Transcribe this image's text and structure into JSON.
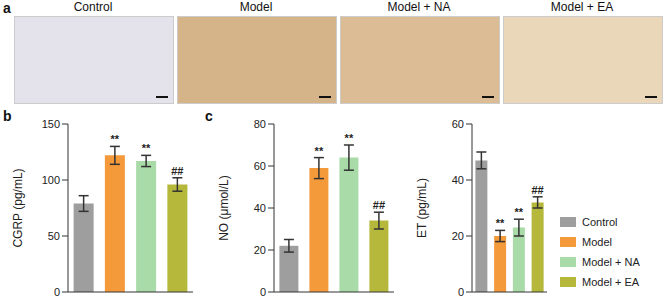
{
  "figure": {
    "panel_labels": [
      "a",
      "b",
      "c"
    ],
    "image_titles": [
      "Control",
      "Model",
      "Model + NA",
      "Model + EA"
    ]
  },
  "chart_data": [
    {
      "type": "bar",
      "ylabel": "CGRP (pg/mL)",
      "categories": [
        "Control",
        "Model",
        "Model + NA",
        "Model + EA"
      ],
      "values": [
        79,
        122,
        117,
        96
      ],
      "errors": [
        7,
        8,
        5,
        6
      ],
      "annotations": [
        null,
        "**",
        "**",
        "##"
      ],
      "colors": [
        "#9e9e9e",
        "#f59a3a",
        "#a8dba8",
        "#b5b83a"
      ],
      "ylim": [
        0,
        150
      ],
      "yticks": [
        0,
        50,
        100,
        150
      ],
      "tick_labels": "y"
    },
    {
      "type": "bar",
      "ylabel": "NO (μmol/L)",
      "categories": [
        "Control",
        "Model",
        "Model + NA",
        "Model + EA"
      ],
      "values": [
        22,
        59,
        64,
        34
      ],
      "errors": [
        3,
        5,
        6,
        4
      ],
      "annotations": [
        null,
        "**",
        "**",
        "##"
      ],
      "colors": [
        "#9e9e9e",
        "#f59a3a",
        "#a8dba8",
        "#b5b83a"
      ],
      "ylim": [
        0,
        80
      ],
      "yticks": [
        0,
        20,
        40,
        60,
        80
      ],
      "tick_labels": "y"
    },
    {
      "type": "bar",
      "ylabel": "ET (pg/mL)",
      "categories": [
        "Control",
        "Model",
        "Model + NA",
        "Model + EA"
      ],
      "values": [
        47,
        20,
        23,
        32
      ],
      "errors": [
        3,
        2,
        3,
        2
      ],
      "annotations": [
        null,
        "**",
        "**",
        "##"
      ],
      "colors": [
        "#9e9e9e",
        "#f59a3a",
        "#a8dba8",
        "#b5b83a"
      ],
      "ylim": [
        0,
        60
      ],
      "yticks": [
        0,
        20,
        40,
        60
      ],
      "tick_labels": "y",
      "legend": "right"
    }
  ]
}
